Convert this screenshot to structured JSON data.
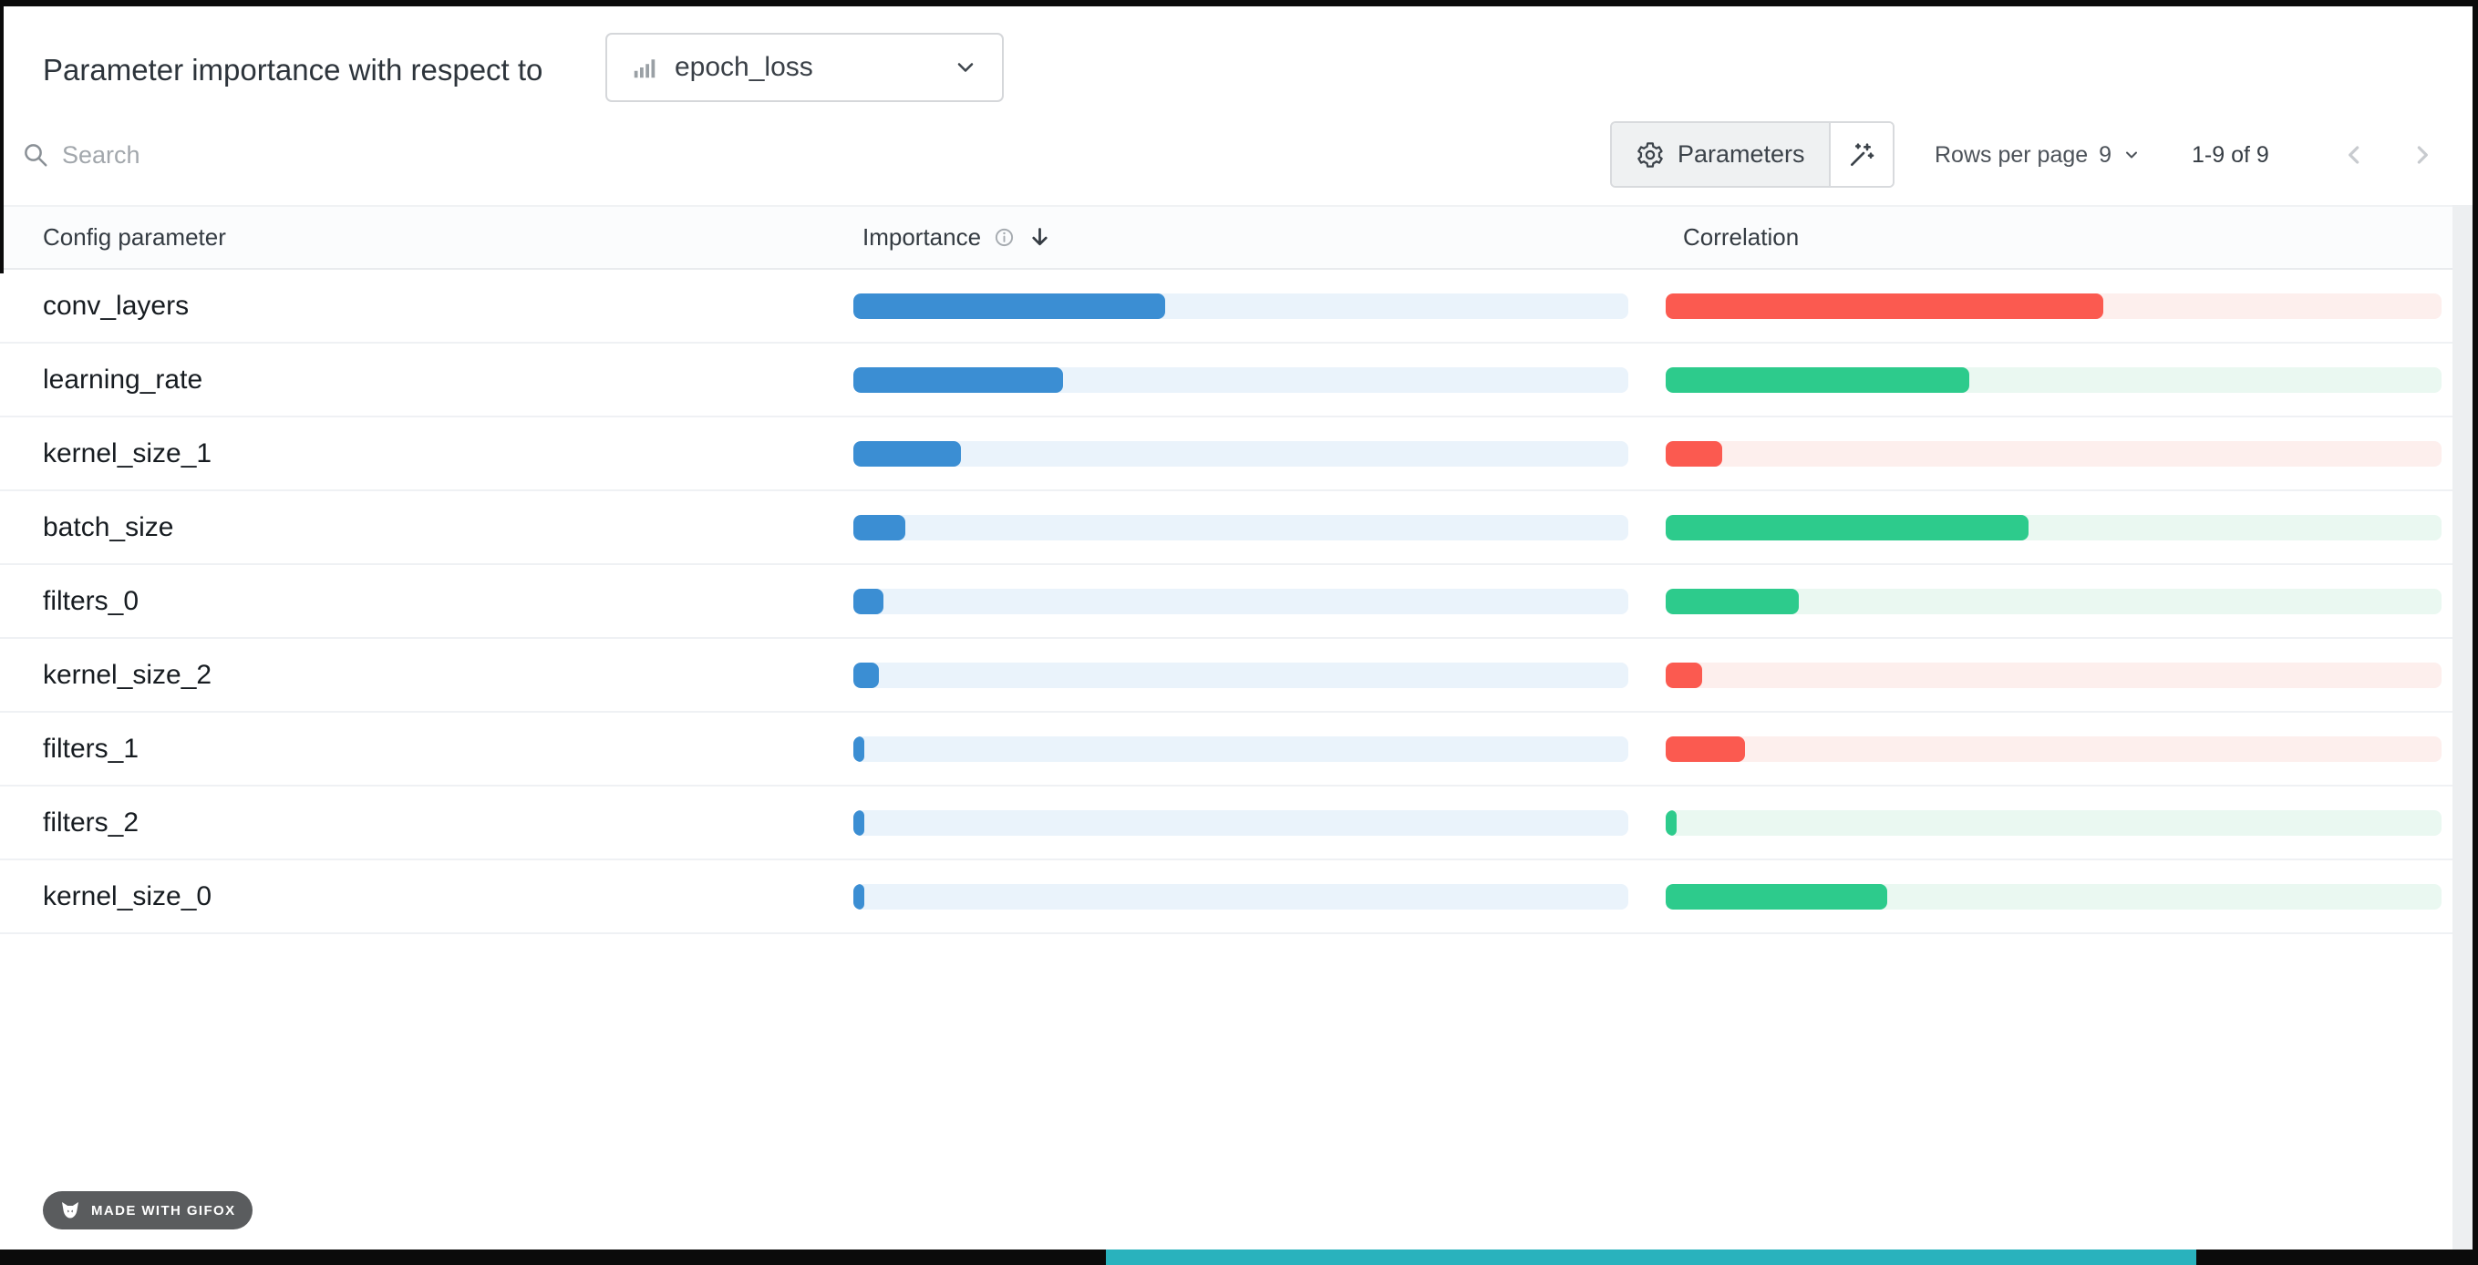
{
  "header": {
    "title": "Parameter importance with respect to",
    "metric_select": {
      "value": "epoch_loss"
    }
  },
  "toolbar": {
    "search_placeholder": "Search",
    "parameters_label": "Parameters",
    "rows_per_page_label": "Rows per page",
    "rows_per_page_value": "9",
    "range_text": "1-9 of 9"
  },
  "table": {
    "columns": {
      "parameter": "Config parameter",
      "importance": "Importance",
      "correlation": "Correlation"
    },
    "rows": [
      {
        "name": "conv_layers",
        "importance_pct": 40.2,
        "correlation_pct": 56.4,
        "correlation_color": "red"
      },
      {
        "name": "learning_rate",
        "importance_pct": 27.1,
        "correlation_pct": 39.1,
        "correlation_color": "green"
      },
      {
        "name": "kernel_size_1",
        "importance_pct": 13.9,
        "correlation_pct": 7.3,
        "correlation_color": "red"
      },
      {
        "name": "batch_size",
        "importance_pct": 6.7,
        "correlation_pct": 46.8,
        "correlation_color": "green"
      },
      {
        "name": "filters_0",
        "importance_pct": 3.9,
        "correlation_pct": 17.1,
        "correlation_color": "green"
      },
      {
        "name": "kernel_size_2",
        "importance_pct": 3.3,
        "correlation_pct": 4.7,
        "correlation_color": "red"
      },
      {
        "name": "filters_1",
        "importance_pct": 1.4,
        "correlation_pct": 10.2,
        "correlation_color": "red"
      },
      {
        "name": "filters_2",
        "importance_pct": 1.2,
        "correlation_pct": 1.0,
        "correlation_color": "green"
      },
      {
        "name": "kernel_size_0",
        "importance_pct": 1.0,
        "correlation_pct": 28.5,
        "correlation_color": "green"
      }
    ]
  },
  "badge": {
    "label": "MADE WITH GIFOX"
  },
  "colors": {
    "importance_bar": "#3b8ed3",
    "importance_track": "#eaf3fb",
    "positive_bar": "#2dcb8c",
    "positive_track": "#eaf8f1",
    "negative_bar": "#fb5a50",
    "negative_track": "#fdefed",
    "accent_teal": "#29b2bd"
  },
  "icons": {
    "metric": "bar-chart",
    "search": "magnifier",
    "parameters": "gear",
    "auto_columns": "magic-wand",
    "sort": "arrow-down",
    "importance_info": "info-circle",
    "pagination_prev": "chevron-left",
    "pagination_next": "chevron-right",
    "badge": "fox"
  }
}
